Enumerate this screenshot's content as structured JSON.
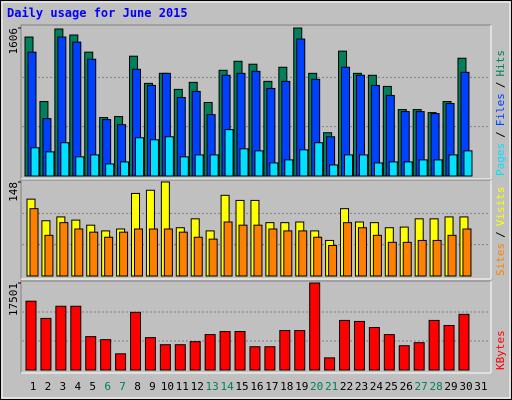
{
  "title": "Daily usage for June 2015",
  "chart_data": [
    {
      "type": "bar",
      "ylim": [
        0,
        1606
      ],
      "yticks": [
        1606
      ],
      "legend_separator": "/",
      "series": [
        {
          "name": "Hits",
          "color": "#00805C",
          "values": [
            1508,
            808,
            1595,
            1530,
            1344,
            634,
            645,
            1300,
            1005,
            1114,
            940,
            1016,
            798,
            1147,
            1245,
            1213,
            1027,
            1180,
            1606,
            1114,
            470,
            1355,
            1114,
            1093,
            972,
            721,
            721,
            688,
            808,
            1278,
            null
          ]
        },
        {
          "name": "Files",
          "color": "#0040FF",
          "values": [
            1344,
            623,
            1508,
            1453,
            1267,
            612,
            557,
            1158,
            983,
            1114,
            852,
            918,
            666,
            1093,
            1114,
            1136,
            950,
            1027,
            1486,
            1049,
            426,
            1180,
            1093,
            983,
            874,
            699,
            699,
            677,
            787,
            1125,
            null
          ]
        },
        {
          "name": "Pages",
          "color": "#00E0FF",
          "values": [
            306,
            262,
            361,
            208,
            229,
            131,
            153,
            415,
            393,
            426,
            208,
            229,
            229,
            503,
            295,
            273,
            142,
            175,
            284,
            361,
            120,
            229,
            229,
            142,
            153,
            153,
            175,
            175,
            229,
            273,
            null
          ]
        }
      ]
    },
    {
      "type": "bar",
      "ylim": [
        0,
        148
      ],
      "yticks": [
        148
      ],
      "legend_separator": "/",
      "series": [
        {
          "name": "Visits",
          "color": "#FFFF00",
          "values": [
            121,
            87,
            93,
            88,
            80,
            71,
            74,
            130,
            135,
            148,
            76,
            90,
            71,
            127,
            119,
            119,
            84,
            84,
            85,
            71,
            56,
            106,
            85,
            84,
            76,
            77,
            90,
            90,
            93,
            93,
            null
          ]
        },
        {
          "name": "Sites",
          "color": "#FF8000",
          "values": [
            106,
            64,
            84,
            74,
            69,
            61,
            69,
            74,
            74,
            74,
            69,
            61,
            58,
            85,
            80,
            80,
            74,
            71,
            71,
            61,
            48,
            84,
            76,
            64,
            53,
            53,
            56,
            56,
            64,
            74,
            null
          ]
        }
      ]
    },
    {
      "type": "bar",
      "ylim": [
        0,
        17501
      ],
      "yticks": [
        17501
      ],
      "categories": [
        "1",
        "2",
        "3",
        "4",
        "5",
        "6",
        "7",
        "8",
        "9",
        "10",
        "11",
        "12",
        "13",
        "14",
        "15",
        "16",
        "17",
        "18",
        "19",
        "20",
        "21",
        "22",
        "23",
        "24",
        "25",
        "26",
        "27",
        "28",
        "29",
        "30",
        "31"
      ],
      "label_colors": [
        "#000000",
        "#000000",
        "#000000",
        "#000000",
        "#000000",
        "#00805C",
        "#00805C",
        "#000000",
        "#000000",
        "#000000",
        "#000000",
        "#000000",
        "#00805C",
        "#00805C",
        "#000000",
        "#000000",
        "#000000",
        "#000000",
        "#000000",
        "#00805C",
        "#00805C",
        "#000000",
        "#000000",
        "#000000",
        "#000000",
        "#000000",
        "#00805C",
        "#00805C",
        "#000000",
        "#000000",
        "#000000"
      ],
      "series": [
        {
          "name": "KBytes",
          "color": "#FF0000",
          "values": [
            13838,
            10379,
            12821,
            12821,
            6716,
            6105,
            3256,
            11600,
            6512,
            5088,
            5088,
            5698,
            7123,
            7733,
            7733,
            4681,
            4681,
            7937,
            7937,
            17501,
            2442,
            9972,
            9768,
            8547,
            7123,
            4884,
            5495,
            9972,
            8954,
            11193,
            null
          ]
        }
      ]
    }
  ]
}
